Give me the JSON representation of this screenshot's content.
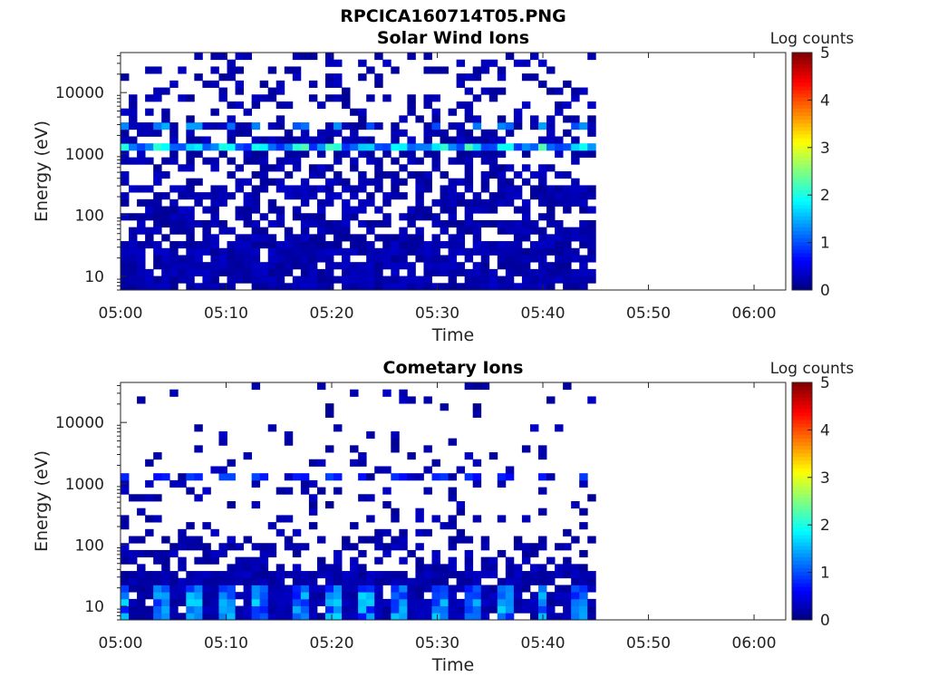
{
  "figure": {
    "title": "RPCICA160714T05.PNG"
  },
  "chart_data": [
    {
      "type": "heatmap",
      "title": "Solar Wind Ions",
      "xlabel": "Time",
      "ylabel": "Energy (eV)",
      "x_tick_labels": [
        "05:00",
        "05:10",
        "05:20",
        "05:30",
        "05:40",
        "05:50",
        "06:00"
      ],
      "x_range_minutes": [
        0,
        63
      ],
      "y_scale": "log",
      "y_tick_labels": [
        "10",
        "100",
        "1000",
        "10000"
      ],
      "y_range_eV": [
        6,
        45000
      ],
      "colorbar": {
        "label": "Log counts",
        "tick_labels": [
          "0",
          "1",
          "2",
          "3",
          "4",
          "5"
        ],
        "range": [
          0,
          5
        ],
        "colormap": "jet"
      },
      "data_extent_minutes": [
        0,
        45
      ],
      "data_end_label": "05:45",
      "dominant_feature": {
        "energy_eV": 1300,
        "log_counts": 2.2,
        "period_minutes": 3.3
      },
      "colors": {
        "axis": "#262626",
        "background": "#ffffff"
      }
    },
    {
      "type": "heatmap",
      "title": "Cometary Ions",
      "xlabel": "Time",
      "ylabel": "Energy (eV)",
      "x_tick_labels": [
        "05:00",
        "05:10",
        "05:20",
        "05:30",
        "05:40",
        "05:50",
        "06:00"
      ],
      "x_range_minutes": [
        0,
        63
      ],
      "y_scale": "log",
      "y_tick_labels": [
        "10",
        "100",
        "1000",
        "10000"
      ],
      "y_range_eV": [
        6,
        45000
      ],
      "colorbar": {
        "label": "Log counts",
        "tick_labels": [
          "0",
          "1",
          "2",
          "3",
          "4",
          "5"
        ],
        "range": [
          0,
          5
        ],
        "colormap": "jet"
      },
      "data_extent_minutes": [
        0,
        45
      ],
      "data_end_label": "05:45",
      "dominant_feature": {
        "energy_eV": 14,
        "log_counts": 1.2,
        "period_minutes": 3.3
      },
      "colors": {
        "axis": "#262626",
        "background": "#ffffff"
      }
    }
  ]
}
